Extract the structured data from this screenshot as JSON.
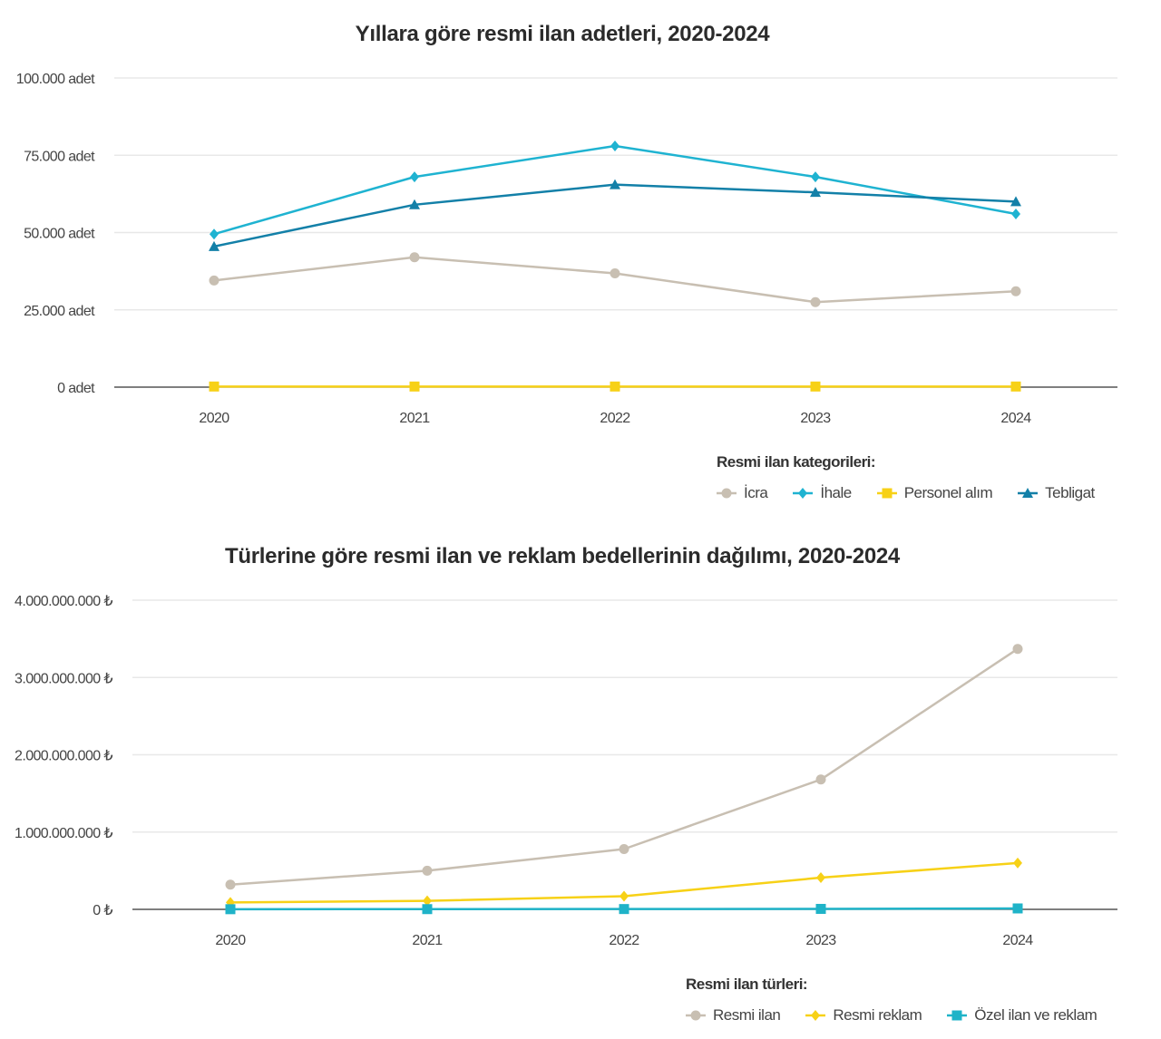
{
  "chart_data": [
    {
      "type": "line",
      "title": "Yıllara göre resmi ilan adetleri, 2020-2024",
      "xlabel": "",
      "ylabel": "",
      "x": [
        "2020",
        "2021",
        "2022",
        "2023",
        "2024"
      ],
      "ylim": [
        0,
        100000
      ],
      "yticks": [
        0,
        25000,
        50000,
        75000,
        100000
      ],
      "ytick_labels": [
        "0 adet",
        "25.000 adet",
        "50.000 adet",
        "75.000 adet",
        "100.000 adet"
      ],
      "grid": true,
      "legend_title": "Resmi ilan kategorileri:",
      "legend_position": "bottom-right",
      "series": [
        {
          "name": "İcra",
          "color": "#c8bfb2",
          "marker": "circle",
          "values": [
            34500,
            42000,
            36800,
            27500,
            31000
          ]
        },
        {
          "name": "İhale",
          "color": "#1fb3d1",
          "marker": "diamond",
          "values": [
            49500,
            68000,
            78000,
            68000,
            56000
          ]
        },
        {
          "name": "Personel alım",
          "color": "#f7d117",
          "marker": "square",
          "values": [
            200,
            200,
            200,
            200,
            200
          ]
        },
        {
          "name": "Tebligat",
          "color": "#1380a8",
          "marker": "triangle",
          "values": [
            45500,
            59000,
            65500,
            63000,
            60000
          ]
        }
      ]
    },
    {
      "type": "line",
      "title": "Türlerine göre resmi ilan ve reklam bedellerinin dağılımı, 2020-2024",
      "xlabel": "",
      "ylabel": "",
      "x": [
        "2020",
        "2021",
        "2022",
        "2023",
        "2024"
      ],
      "ylim": [
        0,
        4000000000
      ],
      "yticks": [
        0,
        1000000000,
        2000000000,
        3000000000,
        4000000000
      ],
      "ytick_labels": [
        "0 ₺",
        "1.000.000.000 ₺",
        "2.000.000.000 ₺",
        "3.000.000.000 ₺",
        "4.000.000.000 ₺"
      ],
      "grid": true,
      "legend_title": "Resmi ilan türleri:",
      "legend_position": "bottom-right",
      "series": [
        {
          "name": "Resmi ilan",
          "color": "#c8bfb2",
          "marker": "circle",
          "values": [
            320000000,
            500000000,
            780000000,
            1680000000,
            3370000000
          ]
        },
        {
          "name": "Resmi reklam",
          "color": "#f7d117",
          "marker": "diamond",
          "values": [
            90000000,
            110000000,
            170000000,
            410000000,
            600000000
          ]
        },
        {
          "name": "Özel ilan ve reklam",
          "color": "#1fb3c8",
          "marker": "square",
          "values": [
            2000000,
            3000000,
            4000000,
            6000000,
            12000000
          ]
        }
      ]
    }
  ]
}
